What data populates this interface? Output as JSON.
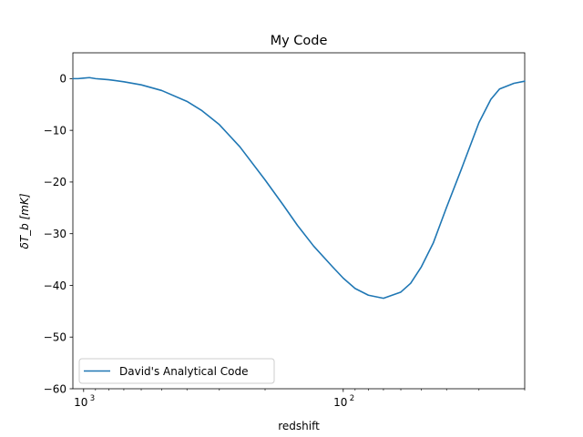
{
  "chart_data": {
    "type": "line",
    "title": "My Code",
    "xlabel": "redshift",
    "ylabel": "δT_b [mK]",
    "x_scale": "log",
    "x_inverted": true,
    "xlim": [
      1100,
      20
    ],
    "ylim": [
      -60,
      5
    ],
    "y_ticks": [
      0,
      -10,
      -20,
      -30,
      -40,
      -50,
      -60
    ],
    "y_tick_labels": [
      "0",
      "−10",
      "−20",
      "−30",
      "−40",
      "−50",
      "−60"
    ],
    "x_major_ticks": [
      1000,
      100
    ],
    "x_major_tick_labels": [
      "10",
      "10"
    ],
    "x_major_tick_exponents": [
      "3",
      "2"
    ],
    "x_minor_ticks": [
      900,
      800,
      700,
      600,
      500,
      400,
      300,
      200,
      90,
      80,
      70,
      60,
      50,
      40,
      30,
      20
    ],
    "grid": false,
    "legend_position": "lower-left",
    "series": [
      {
        "name": "David's Analytical Code",
        "color": "#1f77b4",
        "x": [
          1100,
          1050,
          1000,
          950,
          900,
          850,
          800,
          700,
          600,
          500,
          400,
          350,
          300,
          250,
          200,
          170,
          150,
          130,
          110,
          100,
          90,
          80,
          70,
          60,
          55,
          50,
          45,
          40,
          35,
          30,
          27,
          25,
          22,
          20
        ],
        "y": [
          0.0,
          0.0,
          0.1,
          0.2,
          0.0,
          -0.1,
          -0.2,
          -0.6,
          -1.2,
          -2.3,
          -4.4,
          -6.2,
          -8.9,
          -13.2,
          -19.6,
          -24.5,
          -28.4,
          -32.4,
          -36.4,
          -38.6,
          -40.6,
          -41.9,
          -42.5,
          -41.3,
          -39.6,
          -36.4,
          -31.8,
          -24.9,
          -17.4,
          -8.5,
          -4.0,
          -2.0,
          -0.9,
          -0.5
        ]
      }
    ]
  }
}
